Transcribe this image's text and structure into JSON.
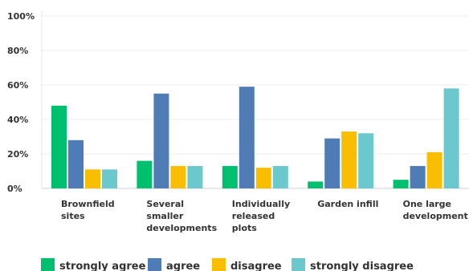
{
  "chart_data": {
    "type": "bar",
    "categories": [
      [
        "Brownfield",
        "sites"
      ],
      [
        "Several",
        "smaller",
        "developments"
      ],
      [
        "Individually",
        "released",
        "plots"
      ],
      [
        "Garden infill"
      ],
      [
        "One large",
        "development"
      ]
    ],
    "series": [
      {
        "name": "strongly agree",
        "color": "#00BF6F",
        "values": [
          48,
          16,
          13,
          4,
          5
        ]
      },
      {
        "name": "agree",
        "color": "#507CB6",
        "values": [
          28,
          55,
          59,
          29,
          13
        ]
      },
      {
        "name": "disagree",
        "color": "#F9BE00",
        "values": [
          11,
          13,
          12,
          33,
          21
        ]
      },
      {
        "name": "strongly disagree",
        "color": "#6BC8CD",
        "values": [
          11,
          13,
          13,
          32,
          58
        ]
      }
    ],
    "y_ticks": [
      "0%",
      "20%",
      "40%",
      "60%",
      "80%",
      "100%"
    ],
    "ylim": [
      0,
      100
    ],
    "grid": true,
    "legend_position": "bottom"
  }
}
